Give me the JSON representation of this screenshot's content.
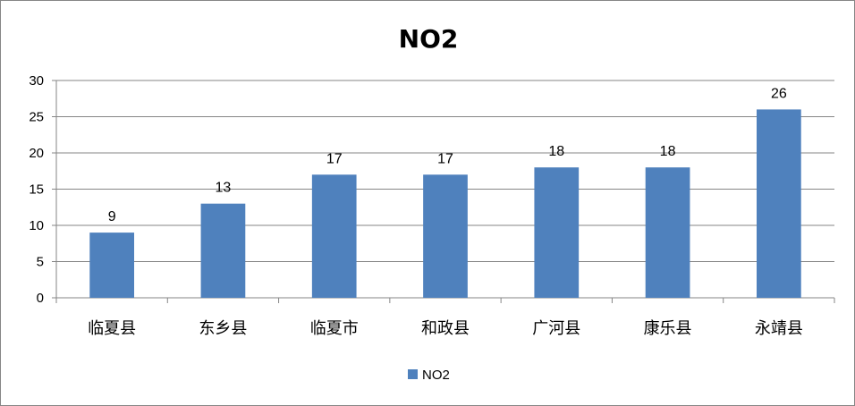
{
  "chart_data": {
    "type": "bar",
    "title": "NO2",
    "categories": [
      "临夏县",
      "东乡县",
      "临夏市",
      "和政县",
      "广河县",
      "康乐县",
      "永靖县"
    ],
    "series": [
      {
        "name": "NO2",
        "values": [
          9,
          13,
          17,
          17,
          18,
          18,
          26
        ],
        "color": "#4F81BD"
      }
    ],
    "ylim": [
      0,
      30
    ],
    "yticks": [
      0,
      5,
      10,
      15,
      20,
      25,
      30
    ],
    "grid": true,
    "data_labels": true,
    "legend_position": "bottom"
  }
}
